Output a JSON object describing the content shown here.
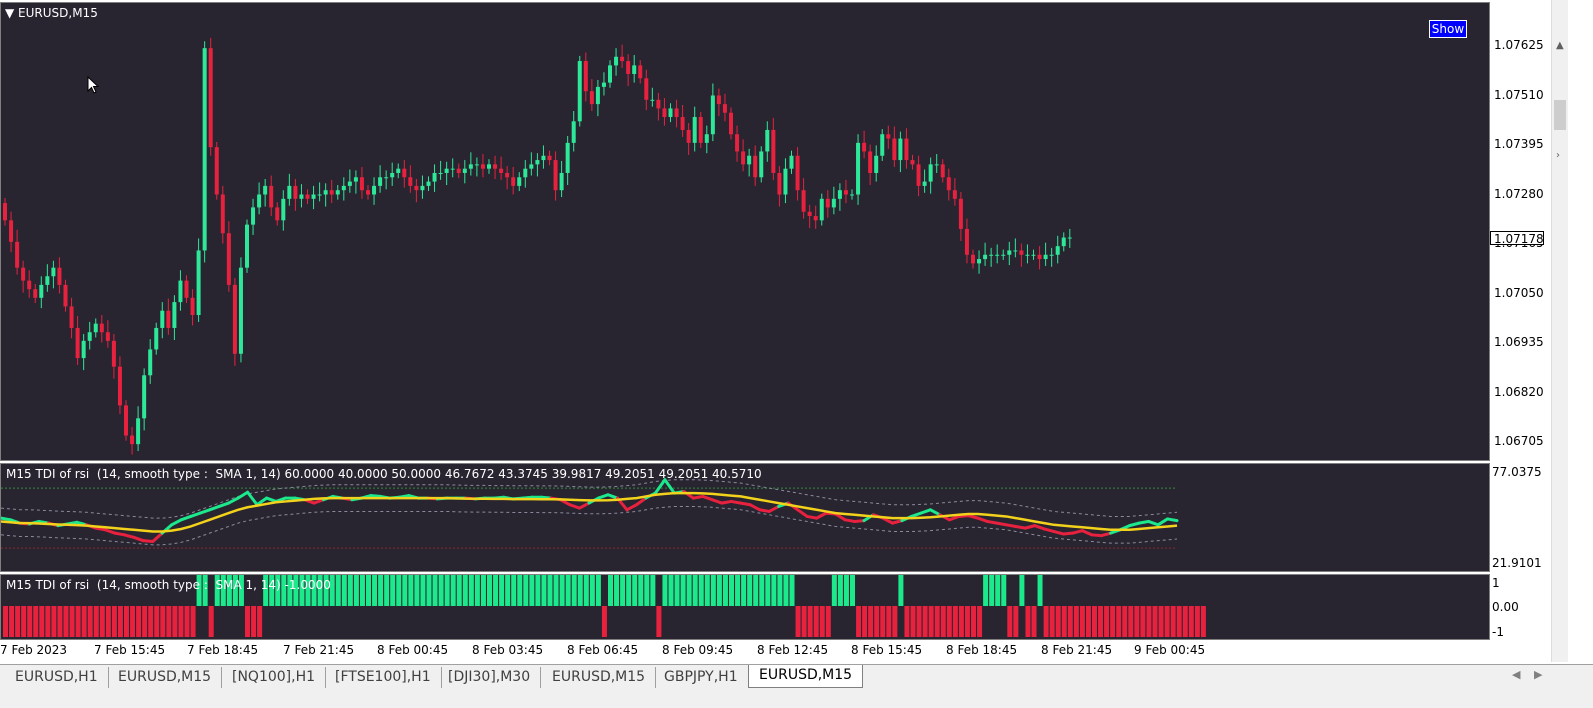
{
  "main": {
    "title": "EURUSD,M15",
    "show_button": "Show",
    "current_price": "1.07178"
  },
  "tdi": {
    "title": "M15 TDI of rsi  (14, smooth type :  SMA 1, 14) 60.0000 40.0000 50.0000 46.7672 43.3745 39.9817 49.2051 49.2051 40.5710"
  },
  "hist": {
    "title": "M15 TDI of rsi  (14, smooth type :  SMA 1, 14) -1.0000"
  },
  "price_axis": [
    "1.07625",
    "1.07510",
    "1.07395",
    "1.07280",
    "1.07165",
    "1.07050",
    "1.06935",
    "1.06820",
    "1.06705"
  ],
  "tdi_axis": [
    "77.0375",
    "21.9101"
  ],
  "hist_axis": [
    "1",
    "0.00",
    "-1"
  ],
  "time_axis": [
    "7 Feb 2023",
    "7 Feb 15:45",
    "7 Feb 18:45",
    "7 Feb 21:45",
    "8 Feb 00:45",
    "8 Feb 03:45",
    "8 Feb 06:45",
    "8 Feb 09:45",
    "8 Feb 12:45",
    "8 Feb 15:45",
    "8 Feb 18:45",
    "8 Feb 21:45",
    "9 Feb 00:45"
  ],
  "tabs": [
    "EURUSD,H1",
    "EURUSD,M15",
    "[NQ100],H1",
    "[FTSE100],H1",
    "[DJI30],M30",
    "EURUSD,M15",
    "GBPJPY,H1",
    "EURUSD,M15"
  ],
  "active_tab": 7,
  "colors": {
    "bull": "#2ee89a",
    "bear": "#e8213f",
    "tdi_green": "#1ce88c",
    "tdi_yellow": "#f2d21b",
    "background": "#282530"
  },
  "chart_data": {
    "type": "candlestick",
    "symbol": "EURUSD",
    "timeframe": "M15",
    "close": [
      1.0722,
      1.0717,
      1.0711,
      1.0708,
      1.0706,
      1.0704,
      1.0707,
      1.0709,
      1.0711,
      1.0707,
      1.0702,
      1.0697,
      1.069,
      1.0694,
      1.0696,
      1.0698,
      1.0696,
      1.0694,
      1.0688,
      1.0679,
      1.0672,
      1.067,
      1.0676,
      1.0686,
      1.0692,
      1.0697,
      1.0701,
      1.0697,
      1.0703,
      1.0708,
      1.0704,
      1.07,
      1.0715,
      1.0762,
      1.0739,
      1.0728,
      1.0719,
      1.0707,
      1.0691,
      1.0711,
      1.0721,
      1.0725,
      1.0728,
      1.073,
      1.0725,
      1.0722,
      1.0727,
      1.073,
      1.0727,
      1.0728,
      1.0727,
      1.0728,
      1.0728,
      1.0729,
      1.0728,
      1.0729,
      1.073,
      1.0731,
      1.0732,
      1.0729,
      1.0728,
      1.073,
      1.0732,
      1.0732,
      1.0733,
      1.0734,
      1.0732,
      1.073,
      1.0729,
      1.073,
      1.0731,
      1.0733,
      1.0733,
      1.0734,
      1.0734,
      1.0733,
      1.0734,
      1.0735,
      1.0735,
      1.0734,
      1.0735,
      1.0734,
      1.0733,
      1.0732,
      1.073,
      1.0732,
      1.0734,
      1.0735,
      1.0736,
      1.0737,
      1.0736,
      1.0729,
      1.0733,
      1.074,
      1.0745,
      1.0759,
      1.0752,
      1.0749,
      1.0753,
      1.0754,
      1.0758,
      1.076,
      1.0759,
      1.0756,
      1.0758,
      1.0755,
      1.075,
      1.075,
      1.0748,
      1.0746,
      1.0748,
      1.0746,
      1.0743,
      1.074,
      1.0746,
      1.074,
      1.0742,
      1.0751,
      1.0749,
      1.0747,
      1.0742,
      1.0738,
      1.0735,
      1.0737,
      1.0732,
      1.0738,
      1.0743,
      1.0733,
      1.0728,
      1.0734,
      1.0737,
      1.0729,
      1.0724,
      1.0723,
      1.0722,
      1.0727,
      1.0725,
      1.0727,
      1.0729,
      1.0728,
      1.0728,
      1.074,
      1.0738,
      1.0733,
      1.0737,
      1.0742,
      1.0741,
      1.0736,
      1.0741,
      1.0736,
      1.0735,
      1.073,
      1.0731,
      1.0735,
      1.0735,
      1.0732,
      1.0729,
      1.0727,
      1.072,
      1.0714,
      1.0712,
      1.0713,
      1.0714,
      1.0714,
      1.0714,
      1.0714,
      1.0715,
      1.0715,
      1.0714,
      1.0714,
      1.0714,
      1.0713,
      1.0714,
      1.0714,
      1.0716,
      1.0718,
      1.0718
    ]
  },
  "tdi_data": {
    "green": [
      50.0,
      49.0,
      47.0,
      46.5,
      48.0,
      47.0,
      45.5,
      46.5,
      47.5,
      46.0,
      44.0,
      43.0,
      41.0,
      40.0,
      38.5,
      36.5,
      36.0,
      41.0,
      46.0,
      49.0,
      51.0,
      53.0,
      55.0,
      57.0,
      59.0,
      62.0,
      65.5,
      58.0,
      62.0,
      60.0,
      62.0,
      62.0,
      61.0,
      59.0,
      61.0,
      63.0,
      62.0,
      61.0,
      62.0,
      63.5,
      63.0,
      62.0,
      62.5,
      63.5,
      62.0,
      62.0,
      61.5,
      62.0,
      62.0,
      62.0,
      61.5,
      62.0,
      62.0,
      62.5,
      61.5,
      62.0,
      62.5,
      62.5,
      62.0,
      61.0,
      58.0,
      56.0,
      59.0,
      62.0,
      64.0,
      62.0,
      55.0,
      58.0,
      62.0,
      65.0,
      73.0,
      65.0,
      66.0,
      62.0,
      63.0,
      61.0,
      59.0,
      60.0,
      59.0,
      58.0,
      55.0,
      54.0,
      57.0,
      59.0,
      55.0,
      51.0,
      50.0,
      53.0,
      52.5,
      49.0,
      48.0,
      48.5,
      52.0,
      50.0,
      47.0,
      48.5,
      51.0,
      53.0,
      55.0,
      52.0,
      49.0,
      51.0,
      51.5,
      50.0,
      48.0,
      47.0,
      46.0,
      45.0,
      44.0,
      45.5,
      43.5,
      42.0,
      40.5,
      41.0,
      42.5,
      40.0,
      39.5,
      41.0,
      43.0,
      45.5,
      47.0,
      48.0,
      46.0,
      49.5,
      48.5
    ],
    "yellow": [
      48.0,
      47.5,
      47.0,
      47.0,
      46.8,
      46.5,
      46.2,
      46.0,
      45.8,
      45.5,
      45.0,
      44.5,
      44.0,
      43.5,
      43.0,
      42.5,
      42.0,
      42.0,
      42.5,
      43.5,
      45.0,
      47.0,
      49.0,
      51.0,
      53.0,
      55.0,
      56.5,
      57.5,
      58.5,
      59.5,
      60.0,
      60.5,
      61.0,
      61.5,
      61.8,
      62.0,
      62.0,
      62.0,
      62.0,
      62.0,
      62.0,
      62.0,
      62.0,
      62.0,
      62.0,
      62.0,
      62.0,
      62.0,
      61.8,
      61.7,
      61.6,
      61.6,
      61.5,
      61.5,
      61.4,
      61.4,
      61.4,
      61.3,
      61.3,
      61.2,
      61.0,
      60.8,
      60.6,
      60.6,
      60.7,
      61.0,
      61.5,
      62.0,
      63.0,
      64.0,
      64.5,
      65.0,
      65.0,
      65.0,
      64.8,
      64.5,
      64.0,
      63.5,
      63.0,
      62.0,
      61.0,
      60.0,
      59.0,
      58.0,
      57.0,
      56.0,
      55.0,
      54.0,
      53.0,
      52.5,
      52.0,
      51.5,
      51.0,
      50.5,
      50.0,
      50.0,
      50.0,
      50.2,
      50.5,
      51.0,
      51.5,
      52.0,
      52.5,
      52.5,
      52.0,
      51.5,
      51.0,
      50.0,
      49.0,
      48.0,
      47.0,
      46.0,
      45.5,
      45.0,
      44.5,
      44.0,
      43.5,
      43.0,
      43.0,
      43.0,
      43.5,
      44.0,
      44.5,
      45.0,
      45.5
    ]
  },
  "hist_data": [
    -1,
    -1,
    -1,
    -1,
    -1,
    -1,
    -1,
    -1,
    -1,
    -1,
    -1,
    -1,
    -1,
    -1,
    -1,
    -1,
    -1,
    -1,
    -1,
    -1,
    -1,
    -1,
    -1,
    -1,
    -1,
    -1,
    -1,
    -1,
    -1,
    -1,
    -1,
    -1,
    1,
    1,
    -1,
    1,
    1,
    1,
    1,
    1,
    -1,
    -1,
    -1,
    1,
    1,
    1,
    1,
    1,
    1,
    1,
    1,
    1,
    1,
    1,
    1,
    1,
    1,
    1,
    1,
    1,
    1,
    1,
    1,
    1,
    1,
    1,
    1,
    1,
    1,
    1,
    1,
    1,
    1,
    1,
    1,
    1,
    1,
    1,
    1,
    1,
    1,
    1,
    1,
    1,
    1,
    1,
    1,
    1,
    1,
    1,
    1,
    1,
    1,
    1,
    1,
    1,
    1,
    1,
    1,
    -1,
    1,
    1,
    1,
    1,
    1,
    1,
    1,
    1,
    -1,
    1,
    1,
    1,
    1,
    1,
    1,
    1,
    1,
    1,
    1,
    1,
    1,
    1,
    1,
    1,
    1,
    1,
    1,
    1,
    1,
    1,
    1,
    -1,
    -1,
    -1,
    -1,
    -1,
    -1,
    1,
    1,
    1,
    1,
    -1,
    -1,
    -1,
    -1,
    -1,
    -1,
    -1,
    1,
    -1,
    -1,
    -1,
    -1,
    -1,
    -1,
    -1,
    -1,
    -1,
    -1,
    -1,
    -1,
    -1,
    1,
    1,
    1,
    1,
    -1,
    -1,
    1,
    -1,
    -1,
    1,
    -1,
    -1,
    -1,
    -1,
    -1,
    -1,
    -1,
    -1,
    -1,
    -1,
    -1,
    -1,
    -1,
    -1,
    -1,
    -1,
    -1,
    -1,
    -1,
    -1,
    -1,
    -1,
    -1,
    -1,
    -1,
    -1,
    -1
  ]
}
